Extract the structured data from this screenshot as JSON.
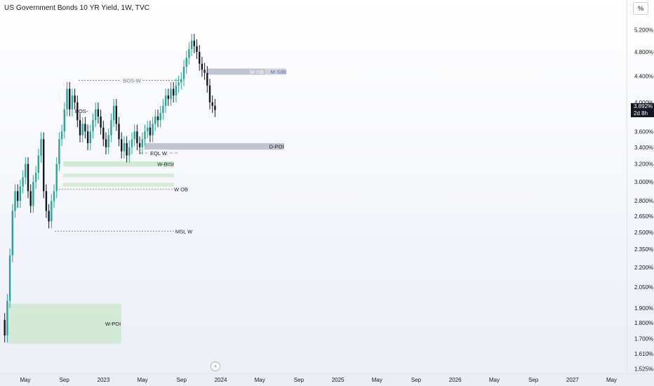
{
  "header": {
    "title": "US Government Bonds 10 YR Yield, 1W, TVC",
    "unit_label": "%"
  },
  "price_badge": {
    "value": "3.892%",
    "countdown": "2d 8h"
  },
  "replay_icon": "lightning-icon",
  "chart_data": {
    "type": "candlestick",
    "title": "US Government Bonds 10 YR Yield, 1W, TVC",
    "y_scale": "log",
    "ylim": [
      1.5,
      5.45
    ],
    "y_ticks": [
      "5.200%",
      "4.800%",
      "4.400%",
      "4.000%",
      "3.600%",
      "3.400%",
      "3.200%",
      "3.000%",
      "2.800%",
      "2.650%",
      "2.500%",
      "2.350%",
      "2.200%",
      "2.050%",
      "1.900%",
      "1.800%",
      "1.700%",
      "1.610%",
      "1.525%"
    ],
    "x_ticks": [
      "May",
      "Sep",
      "2023",
      "May",
      "Sep",
      "2024",
      "May",
      "Sep",
      "2025",
      "May",
      "Sep",
      "2026",
      "May",
      "Sep",
      "2027",
      "May"
    ],
    "last_value": 3.892,
    "path": [
      1.82,
      1.72,
      1.95,
      2.3,
      2.7,
      2.9,
      2.8,
      2.95,
      3.05,
      3.2,
      2.9,
      2.75,
      3.0,
      3.1,
      3.3,
      3.5,
      2.9,
      2.7,
      2.6,
      2.8,
      2.9,
      3.2,
      3.5,
      3.6,
      3.9,
      4.2,
      3.9,
      4.1,
      4.0,
      3.75,
      3.55,
      3.7,
      3.6,
      3.45,
      3.6,
      3.75,
      3.9,
      3.8,
      3.65,
      3.5,
      3.4,
      3.55,
      3.75,
      3.95,
      3.7,
      3.5,
      3.35,
      3.45,
      3.3,
      3.4,
      3.5,
      3.6,
      3.45,
      3.4,
      3.5,
      3.6,
      3.65,
      3.55,
      3.7,
      3.8,
      3.75,
      3.85,
      3.95,
      4.1,
      4.05,
      4.2,
      4.1,
      4.25,
      4.3,
      4.35,
      4.55,
      4.7,
      4.85,
      5.0,
      4.9,
      4.8,
      4.6,
      4.5,
      4.45,
      4.25,
      4.0,
      3.95,
      3.89
    ],
    "annotations": [
      {
        "label": "BOS-W",
        "type": "line",
        "y": 4.33
      },
      {
        "label": "BOS-",
        "type": "text",
        "y": 3.88
      },
      {
        "label": "EQL W",
        "type": "line",
        "y": 3.33
      },
      {
        "label": "W-BISI",
        "type": "zone",
        "y": [
          3.17,
          3.23
        ]
      },
      {
        "label": "W OB",
        "type": "line",
        "y": 2.92
      },
      {
        "label": "MSL W",
        "type": "line",
        "y": 2.51
      },
      {
        "label": "W OB",
        "type": "zone",
        "y": [
          4.42,
          4.52
        ]
      },
      {
        "label": "M-SIBI",
        "type": "zone",
        "y": [
          4.42,
          4.52
        ]
      },
      {
        "label": "D-POI",
        "type": "zone",
        "y": [
          3.37,
          3.45
        ]
      },
      {
        "label": "W-POI",
        "type": "zone",
        "y": [
          1.67,
          1.93
        ]
      }
    ]
  },
  "colors": {
    "up": "#26a69a",
    "down": "#131722",
    "bullish_zone": "#c8e6c9",
    "bearish_zone": "#b2b7c7",
    "line": "#787b86",
    "text": "#131722"
  }
}
